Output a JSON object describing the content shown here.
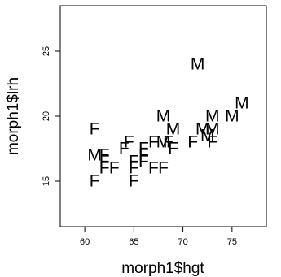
{
  "chart_data": {
    "type": "scatter",
    "title": "",
    "xlabel": "morph1$hgt",
    "ylabel": "morph1$lrh",
    "xlim": [
      57.5,
      78.5
    ],
    "ylim": [
      11.5,
      28.5
    ],
    "x_ticks": [
      60,
      65,
      70,
      75
    ],
    "y_ticks": [
      15,
      20,
      25
    ],
    "grid": false,
    "legend": "none",
    "point_marker": "text label (sex code)",
    "points": [
      {
        "x": 61.0,
        "y": 19.0,
        "label": "F"
      },
      {
        "x": 61.0,
        "y": 17.0,
        "label": "M"
      },
      {
        "x": 61.0,
        "y": 15.0,
        "label": "F"
      },
      {
        "x": 62.0,
        "y": 17.0,
        "label": "F"
      },
      {
        "x": 62.0,
        "y": 16.5,
        "label": "F"
      },
      {
        "x": 62.0,
        "y": 16.0,
        "label": "F"
      },
      {
        "x": 63.0,
        "y": 16.0,
        "label": "F"
      },
      {
        "x": 64.0,
        "y": 17.5,
        "label": "F"
      },
      {
        "x": 64.5,
        "y": 18.0,
        "label": "F"
      },
      {
        "x": 65.0,
        "y": 16.5,
        "label": "F"
      },
      {
        "x": 65.0,
        "y": 16.0,
        "label": "F"
      },
      {
        "x": 65.0,
        "y": 15.0,
        "label": "F"
      },
      {
        "x": 66.0,
        "y": 16.5,
        "label": "F"
      },
      {
        "x": 66.0,
        "y": 17.0,
        "label": "F"
      },
      {
        "x": 66.0,
        "y": 17.5,
        "label": "F"
      },
      {
        "x": 67.0,
        "y": 18.0,
        "label": "F"
      },
      {
        "x": 67.0,
        "y": 16.0,
        "label": "F"
      },
      {
        "x": 68.0,
        "y": 16.0,
        "label": "F"
      },
      {
        "x": 68.0,
        "y": 18.0,
        "label": "M"
      },
      {
        "x": 68.0,
        "y": 20.0,
        "label": "M"
      },
      {
        "x": 68.5,
        "y": 18.0,
        "label": "F"
      },
      {
        "x": 69.0,
        "y": 17.5,
        "label": "F"
      },
      {
        "x": 69.0,
        "y": 19.0,
        "label": "M"
      },
      {
        "x": 71.0,
        "y": 18.0,
        "label": "F"
      },
      {
        "x": 71.5,
        "y": 24.0,
        "label": "M"
      },
      {
        "x": 72.0,
        "y": 19.0,
        "label": "M"
      },
      {
        "x": 72.5,
        "y": 18.5,
        "label": "M"
      },
      {
        "x": 73.0,
        "y": 20.0,
        "label": "M"
      },
      {
        "x": 73.0,
        "y": 19.0,
        "label": "M"
      },
      {
        "x": 73.0,
        "y": 18.0,
        "label": "F"
      },
      {
        "x": 75.0,
        "y": 20.0,
        "label": "M"
      },
      {
        "x": 76.0,
        "y": 21.0,
        "label": "M"
      }
    ]
  }
}
